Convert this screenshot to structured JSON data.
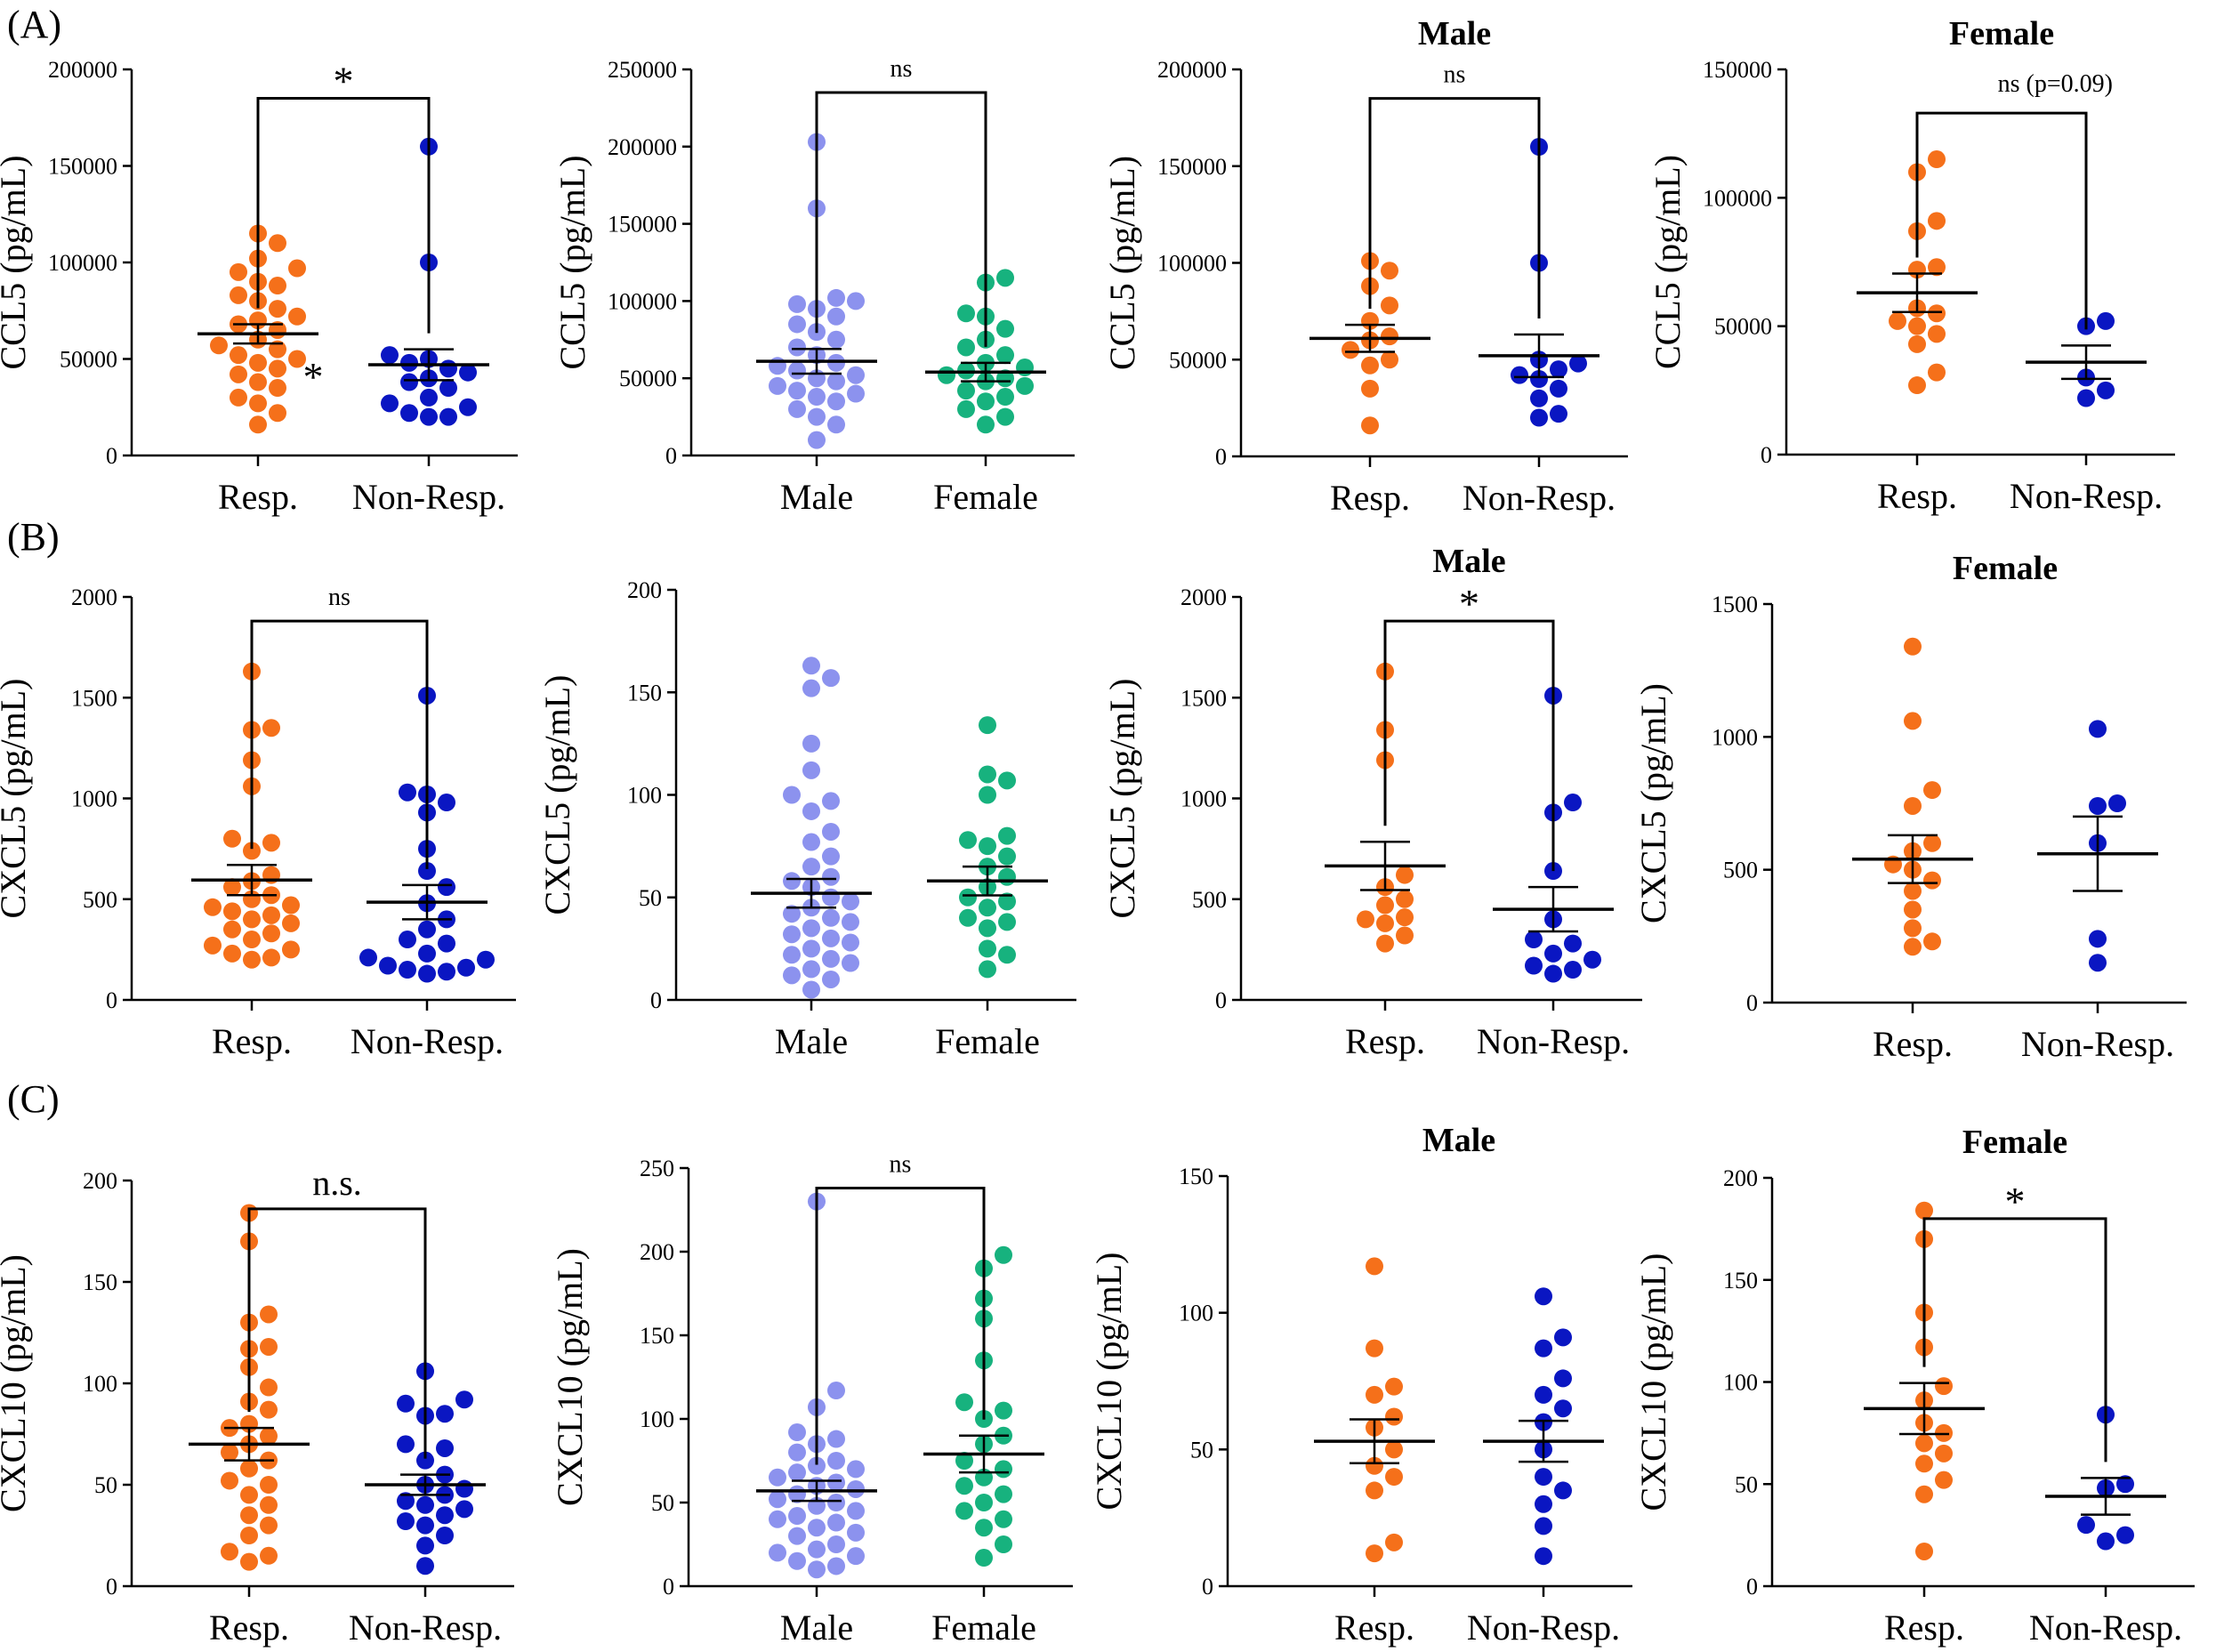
{
  "colors": {
    "resp": "#F5701A",
    "nonresp": "#0A16C2",
    "male": "#8C92EE",
    "female": "#17B27E",
    "ink": "#000000"
  },
  "row_labels": [
    "(A)",
    "(B)",
    "(C)"
  ],
  "chart_data": [
    {
      "id": "A1",
      "type": "scatter",
      "title": "",
      "ylabel": "CCL5 (pg/mL)",
      "ylim": [
        0,
        200000
      ],
      "yticks": [
        0,
        50000,
        100000,
        150000,
        200000
      ],
      "ytick_labels": [
        "0",
        "50000",
        "100000",
        "150000",
        "200000"
      ],
      "categories": [
        "Resp.",
        "Non-Resp."
      ],
      "groups": [
        {
          "name": "Resp.",
          "color": "resp",
          "mean": 63000,
          "sem": 5000,
          "values": [
            115000,
            110000,
            102000,
            97000,
            95000,
            90000,
            88000,
            83000,
            80000,
            76000,
            72000,
            70000,
            68000,
            65000,
            60000,
            57000,
            55000,
            52000,
            50000,
            48000,
            45000,
            42000,
            38000,
            35000,
            30000,
            27000,
            22000,
            16000
          ]
        },
        {
          "name": "Non-Resp.",
          "color": "nonresp",
          "mean": 47000,
          "sem": 8000,
          "values": [
            160000,
            100000,
            52000,
            50000,
            48000,
            45000,
            43000,
            40000,
            38000,
            35000,
            30000,
            27000,
            25000,
            22000,
            20000,
            20000
          ]
        }
      ],
      "significance": {
        "label": "*",
        "from": 0,
        "to": 1,
        "y": 185000,
        "kind": "star"
      },
      "annotations": [
        {
          "text": "*",
          "group": 0,
          "value": 42000
        }
      ]
    },
    {
      "id": "A2",
      "type": "scatter",
      "title": "",
      "ylabel": "CCL5 (pg/mL)",
      "ylim": [
        0,
        250000
      ],
      "yticks": [
        0,
        50000,
        100000,
        150000,
        200000,
        250000
      ],
      "ytick_labels": [
        "0",
        "50000",
        "100000",
        "150000",
        "200000",
        "250000"
      ],
      "categories": [
        "Male",
        "Female"
      ],
      "groups": [
        {
          "name": "Male",
          "color": "male",
          "mean": 61000,
          "sem": 8000,
          "values": [
            203000,
            160000,
            102000,
            100000,
            98000,
            95000,
            90000,
            85000,
            80000,
            75000,
            70000,
            65000,
            60000,
            58000,
            55000,
            52000,
            50000,
            48000,
            45000,
            42000,
            40000,
            38000,
            35000,
            30000,
            25000,
            20000,
            10000
          ]
        },
        {
          "name": "Female",
          "color": "female",
          "mean": 54000,
          "sem": 6000,
          "values": [
            115000,
            112000,
            92000,
            90000,
            82000,
            75000,
            70000,
            65000,
            60000,
            57000,
            55000,
            52000,
            50000,
            48000,
            45000,
            42000,
            38000,
            35000,
            30000,
            25000,
            20000
          ]
        }
      ],
      "significance": {
        "label": "ns",
        "from": 0,
        "to": 1,
        "y": 235000,
        "kind": "text"
      }
    },
    {
      "id": "A3",
      "type": "scatter",
      "title": "Male",
      "ylabel": "CCL5 (pg/mL)",
      "ylim": [
        0,
        200000
      ],
      "yticks": [
        0,
        50000,
        100000,
        150000,
        200000
      ],
      "ytick_labels": [
        "0",
        "50000",
        "100000",
        "150000",
        "200000"
      ],
      "categories": [
        "Resp.",
        "Non-Resp."
      ],
      "groups": [
        {
          "name": "Resp.",
          "color": "resp",
          "mean": 61000,
          "sem": 7000,
          "values": [
            101000,
            96000,
            88000,
            78000,
            70000,
            62000,
            60000,
            55000,
            50000,
            47000,
            35000,
            16000
          ]
        },
        {
          "name": "Non-Resp.",
          "color": "nonresp",
          "mean": 52000,
          "sem": 11000,
          "values": [
            160000,
            100000,
            50000,
            48000,
            45000,
            42000,
            40000,
            35000,
            30000,
            22000,
            20000
          ]
        }
      ],
      "significance": {
        "label": "ns",
        "from": 0,
        "to": 1,
        "y": 185000,
        "kind": "text"
      }
    },
    {
      "id": "A4",
      "type": "scatter",
      "title": "Female",
      "ylabel": "CCL5 (pg/mL)",
      "ylim": [
        0,
        150000
      ],
      "yticks": [
        0,
        50000,
        100000,
        150000
      ],
      "ytick_labels": [
        "0",
        "50000",
        "100000",
        "150000"
      ],
      "categories": [
        "Resp.",
        "Non-Resp."
      ],
      "groups": [
        {
          "name": "Resp.",
          "color": "resp",
          "mean": 63000,
          "sem": 7500,
          "values": [
            115000,
            110000,
            91000,
            87000,
            73000,
            72000,
            57000,
            55000,
            52000,
            50000,
            47000,
            43000,
            32000,
            27000
          ]
        },
        {
          "name": "Non-Resp.",
          "color": "nonresp",
          "mean": 36000,
          "sem": 6500,
          "values": [
            52000,
            50000,
            30000,
            25000,
            22000
          ]
        }
      ],
      "significance": {
        "label": "ns (p=0.09)",
        "from": 0,
        "to": 1,
        "y": 133000,
        "kind": "text-right"
      }
    },
    {
      "id": "B1",
      "type": "scatter",
      "title": "",
      "ylabel": "CXCL5 (pg/mL)",
      "ylim": [
        0,
        2000
      ],
      "yticks": [
        0,
        500,
        1000,
        1500,
        2000
      ],
      "ytick_labels": [
        "0",
        "500",
        "1000",
        "1500",
        "2000"
      ],
      "categories": [
        "Resp.",
        "Non-Resp."
      ],
      "groups": [
        {
          "name": "Resp.",
          "color": "resp",
          "mean": 595,
          "sem": 75,
          "values": [
            1630,
            1350,
            1340,
            1190,
            1060,
            800,
            780,
            740,
            620,
            590,
            560,
            520,
            500,
            470,
            460,
            440,
            420,
            400,
            380,
            350,
            330,
            300,
            270,
            250,
            230,
            210,
            200
          ]
        },
        {
          "name": "Non-Resp.",
          "color": "nonresp",
          "mean": 485,
          "sem": 85,
          "values": [
            1510,
            1030,
            1020,
            980,
            930,
            750,
            640,
            560,
            480,
            400,
            350,
            300,
            280,
            230,
            210,
            200,
            170,
            160,
            150,
            140,
            130
          ]
        }
      ],
      "significance": {
        "label": "ns",
        "from": 0,
        "to": 1,
        "y": 1880,
        "kind": "text"
      }
    },
    {
      "id": "B2",
      "type": "scatter",
      "title": "",
      "ylabel": "CXCL5 (pg/mL)",
      "ylim": [
        0,
        200
      ],
      "yticks": [
        0,
        50,
        100,
        150,
        200
      ],
      "ytick_labels": [
        "0",
        "50",
        "100",
        "150",
        "200"
      ],
      "categories": [
        "Male",
        "Female"
      ],
      "groups": [
        {
          "name": "Male",
          "color": "male",
          "mean": 52,
          "sem": 7,
          "values": [
            163,
            157,
            152,
            125,
            112,
            100,
            97,
            92,
            82,
            77,
            70,
            65,
            60,
            58,
            55,
            50,
            48,
            45,
            42,
            40,
            38,
            35,
            32,
            30,
            28,
            25,
            22,
            20,
            18,
            15,
            12,
            10,
            5
          ]
        },
        {
          "name": "Female",
          "color": "female",
          "mean": 58,
          "sem": 7,
          "values": [
            134,
            110,
            107,
            100,
            80,
            78,
            75,
            70,
            65,
            60,
            55,
            50,
            48,
            45,
            40,
            38,
            35,
            25,
            22,
            15
          ]
        }
      ]
    },
    {
      "id": "B3",
      "type": "scatter",
      "title": "Male",
      "ylabel": "CXCL5 (pg/mL)",
      "ylim": [
        0,
        2000
      ],
      "yticks": [
        0,
        500,
        1000,
        1500,
        2000
      ],
      "ytick_labels": [
        "0",
        "500",
        "1000",
        "1500",
        "2000"
      ],
      "categories": [
        "Resp.",
        "Non-Resp."
      ],
      "groups": [
        {
          "name": "Resp.",
          "color": "resp",
          "mean": 665,
          "sem": 120,
          "values": [
            1630,
            1340,
            1190,
            620,
            560,
            500,
            470,
            410,
            400,
            380,
            320,
            280
          ]
        },
        {
          "name": "Non-Resp.",
          "color": "nonresp",
          "mean": 450,
          "sem": 110,
          "values": [
            1510,
            980,
            930,
            640,
            400,
            300,
            280,
            230,
            200,
            170,
            150,
            130
          ]
        }
      ],
      "significance": {
        "label": "*",
        "from": 0,
        "to": 1,
        "y": 1880,
        "kind": "star"
      }
    },
    {
      "id": "B4",
      "type": "scatter",
      "title": "Female",
      "ylabel": "CXCL5 (pg/mL)",
      "ylim": [
        0,
        1500
      ],
      "yticks": [
        0,
        500,
        1000,
        1500
      ],
      "ytick_labels": [
        "0",
        "500",
        "1000",
        "1500"
      ],
      "categories": [
        "Resp.",
        "Non-Resp."
      ],
      "groups": [
        {
          "name": "Resp.",
          "color": "resp",
          "mean": 540,
          "sem": 90,
          "values": [
            1340,
            1060,
            800,
            740,
            600,
            570,
            520,
            500,
            460,
            420,
            350,
            280,
            230,
            210
          ]
        },
        {
          "name": "Non-Resp.",
          "color": "nonresp",
          "mean": 560,
          "sem": 140,
          "values": [
            1030,
            750,
            740,
            600,
            240,
            150
          ]
        }
      ]
    },
    {
      "id": "C1",
      "type": "scatter",
      "title": "",
      "ylabel": "CXCL10 (pg/mL)",
      "ylim": [
        0,
        200
      ],
      "yticks": [
        0,
        50,
        100,
        150,
        200
      ],
      "ytick_labels": [
        "0",
        "50",
        "100",
        "150",
        "200"
      ],
      "categories": [
        "Resp.",
        "Non-Resp."
      ],
      "groups": [
        {
          "name": "Resp.",
          "color": "resp",
          "mean": 70,
          "sem": 8,
          "values": [
            184,
            170,
            134,
            130,
            118,
            117,
            108,
            98,
            91,
            87,
            80,
            78,
            74,
            70,
            66,
            62,
            58,
            52,
            50,
            45,
            40,
            35,
            30,
            25,
            17,
            15,
            12
          ]
        },
        {
          "name": "Non-Resp.",
          "color": "nonresp",
          "mean": 50,
          "sem": 5,
          "values": [
            106,
            92,
            90,
            85,
            84,
            70,
            68,
            62,
            55,
            50,
            48,
            45,
            42,
            40,
            38,
            35,
            32,
            30,
            25,
            20,
            10
          ]
        }
      ],
      "significance": {
        "label": "n.s.",
        "from": 0,
        "to": 1,
        "y": 186,
        "kind": "text-big"
      }
    },
    {
      "id": "C2",
      "type": "scatter",
      "title": "",
      "ylabel": "CXCL10 (pg/mL)",
      "ylim": [
        0,
        250
      ],
      "yticks": [
        0,
        50,
        100,
        150,
        200,
        250
      ],
      "ytick_labels": [
        "0",
        "50",
        "100",
        "150",
        "200",
        "250"
      ],
      "categories": [
        "Male",
        "Female"
      ],
      "groups": [
        {
          "name": "Male",
          "color": "male",
          "mean": 57,
          "sem": 6,
          "values": [
            230,
            117,
            107,
            92,
            88,
            85,
            80,
            75,
            72,
            70,
            68,
            65,
            62,
            60,
            58,
            55,
            52,
            50,
            48,
            45,
            42,
            40,
            38,
            35,
            32,
            30,
            25,
            22,
            20,
            18,
            15,
            12,
            10
          ]
        },
        {
          "name": "Female",
          "color": "female",
          "mean": 79,
          "sem": 11,
          "values": [
            198,
            190,
            172,
            160,
            135,
            110,
            105,
            100,
            90,
            85,
            75,
            70,
            65,
            60,
            55,
            50,
            45,
            40,
            35,
            25,
            17
          ]
        }
      ],
      "significance": {
        "label": "ns",
        "from": 0,
        "to": 1,
        "y": 238,
        "kind": "text"
      }
    },
    {
      "id": "C3",
      "type": "scatter",
      "title": "Male",
      "ylabel": "CXCL10 (pg/mL)",
      "ylim": [
        0,
        150
      ],
      "yticks": [
        0,
        50,
        100,
        150
      ],
      "ytick_labels": [
        "0",
        "50",
        "100",
        "150"
      ],
      "categories": [
        "Resp.",
        "Non-Resp."
      ],
      "groups": [
        {
          "name": "Resp.",
          "color": "resp",
          "mean": 53,
          "sem": 8,
          "values": [
            117,
            87,
            73,
            70,
            62,
            58,
            50,
            44,
            40,
            35,
            16,
            12
          ]
        },
        {
          "name": "Non-Resp.",
          "color": "nonresp",
          "mean": 53,
          "sem": 7.5,
          "values": [
            106,
            91,
            87,
            76,
            70,
            65,
            60,
            50,
            40,
            35,
            30,
            22,
            11
          ]
        }
      ]
    },
    {
      "id": "C4",
      "type": "scatter",
      "title": "Female",
      "ylabel": "CXCL10 (pg/mL)",
      "ylim": [
        0,
        200
      ],
      "yticks": [
        0,
        50,
        100,
        150,
        200
      ],
      "ytick_labels": [
        "0",
        "50",
        "100",
        "150",
        "200"
      ],
      "categories": [
        "Resp.",
        "Non-Resp."
      ],
      "groups": [
        {
          "name": "Resp.",
          "color": "resp",
          "mean": 87,
          "sem": 12.5,
          "values": [
            184,
            170,
            134,
            117,
            98,
            91,
            80,
            75,
            70,
            65,
            60,
            52,
            45,
            17
          ]
        },
        {
          "name": "Non-Resp.",
          "color": "nonresp",
          "mean": 44,
          "sem": 9,
          "values": [
            84,
            50,
            48,
            30,
            25,
            22
          ]
        }
      ],
      "significance": {
        "label": "*",
        "from": 0,
        "to": 1,
        "y": 180,
        "kind": "star"
      }
    }
  ]
}
